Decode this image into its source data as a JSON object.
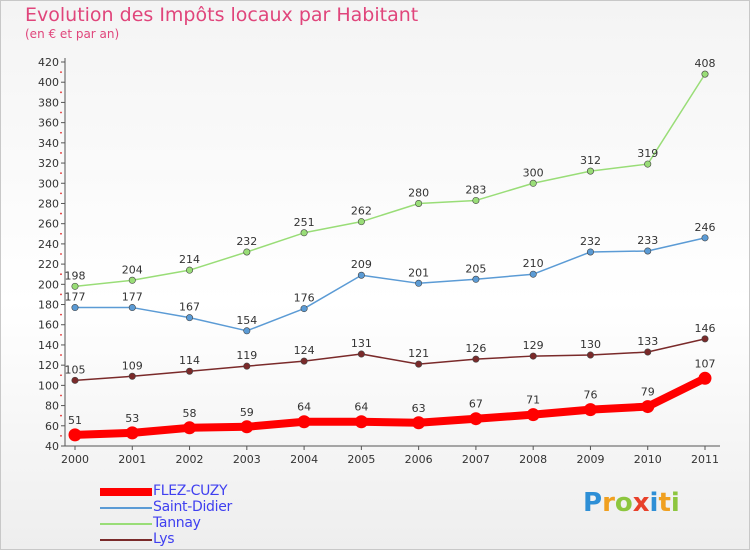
{
  "title": "Evolution des Impôts locaux par Habitant",
  "subtitle": "(en € et par an)",
  "logo_letters": [
    {
      "ch": "P",
      "color": "#2e8fd6"
    },
    {
      "ch": "r",
      "color": "#f0a020"
    },
    {
      "ch": "o",
      "color": "#8dc63f"
    },
    {
      "ch": "x",
      "color": "#e8402a"
    },
    {
      "ch": "i",
      "color": "#2e8fd6"
    },
    {
      "ch": "t",
      "color": "#f0a020"
    },
    {
      "ch": "i",
      "color": "#8dc63f"
    }
  ],
  "chart_data": {
    "type": "line",
    "title": "Evolution des Impôts locaux par Habitant",
    "subtitle": "(en € et par an)",
    "x": [
      "2000",
      "2001",
      "2002",
      "2003",
      "2004",
      "2005",
      "2006",
      "2007",
      "2008",
      "2009",
      "2010",
      "2011"
    ],
    "ylim": [
      40,
      420
    ],
    "ytick_step": 20,
    "grid": false,
    "legend_position": "bottom-left",
    "series": [
      {
        "name": "FLEZ-CUZY",
        "color": "#ff0000",
        "text_color": "#4040f0",
        "bold": true,
        "values": [
          51,
          53,
          58,
          59,
          64,
          64,
          63,
          67,
          71,
          76,
          79,
          107
        ]
      },
      {
        "name": "Saint-Didier",
        "color": "#5b9bd5",
        "text_color": "#4040f0",
        "bold": false,
        "values": [
          177,
          177,
          167,
          154,
          176,
          209,
          201,
          205,
          210,
          232,
          233,
          246
        ]
      },
      {
        "name": "Tannay",
        "color": "#99dd77",
        "text_color": "#4040f0",
        "bold": false,
        "values": [
          198,
          204,
          214,
          232,
          251,
          262,
          280,
          283,
          300,
          312,
          319,
          408
        ]
      },
      {
        "name": "Lys",
        "color": "#7a2a2a",
        "text_color": "#4040f0",
        "bold": false,
        "values": [
          105,
          109,
          114,
          119,
          124,
          131,
          121,
          126,
          129,
          130,
          133,
          146
        ]
      }
    ]
  }
}
